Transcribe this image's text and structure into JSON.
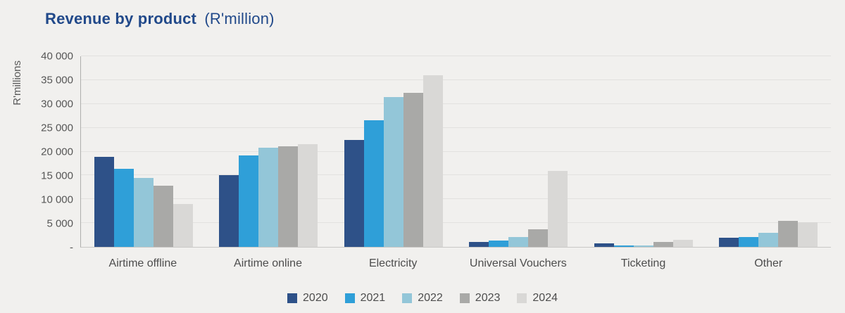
{
  "title": {
    "main": "Revenue by product",
    "unit": "(R'million)"
  },
  "chart_data": {
    "type": "bar",
    "title": "Revenue by product (R'million)",
    "ylabel": "R'millions",
    "xlabel": "",
    "ylim": [
      0,
      40000
    ],
    "grid": true,
    "legend_position": "bottom",
    "yticks": [
      {
        "value": 0,
        "label": "-"
      },
      {
        "value": 5000,
        "label": "5 000"
      },
      {
        "value": 10000,
        "label": "10 000"
      },
      {
        "value": 15000,
        "label": "15 000"
      },
      {
        "value": 20000,
        "label": "20 000"
      },
      {
        "value": 25000,
        "label": "25 000"
      },
      {
        "value": 30000,
        "label": "30 000"
      },
      {
        "value": 35000,
        "label": "35 000"
      },
      {
        "value": 40000,
        "label": "40 000"
      }
    ],
    "categories": [
      "Airtime offline",
      "Airtime online",
      "Electricity",
      "Universal Vouchers",
      "Ticketing",
      "Other"
    ],
    "series": [
      {
        "name": "2020",
        "color": "#2e5188",
        "values": [
          18900,
          15000,
          22500,
          1000,
          700,
          1900
        ]
      },
      {
        "name": "2021",
        "color": "#2f9fd8",
        "values": [
          16400,
          19200,
          26600,
          1400,
          350,
          2100
        ]
      },
      {
        "name": "2022",
        "color": "#93c6d8",
        "values": [
          14400,
          20800,
          31400,
          2000,
          350,
          2900
        ]
      },
      {
        "name": "2023",
        "color": "#a9a9a7",
        "values": [
          12800,
          21100,
          32400,
          3700,
          1100,
          5400
        ]
      },
      {
        "name": "2024",
        "color": "#d9d8d6",
        "values": [
          9000,
          21600,
          36000,
          15900,
          1500,
          5100
        ]
      }
    ],
    "title_color": "#21498a",
    "background_color": "#f1f0ee"
  }
}
